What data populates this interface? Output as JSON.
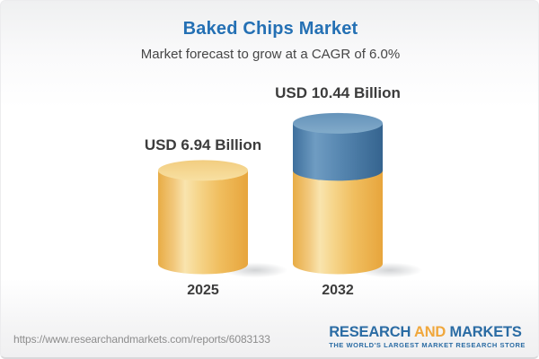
{
  "header": {
    "title": "Baked Chips Market",
    "subtitle": "Market forecast to grow at a CAGR of 6.0%"
  },
  "chart_data": {
    "type": "bar",
    "style": "3d-cylinder",
    "title": "Baked Chips Market",
    "subtitle": "Market forecast to grow at a CAGR of 6.0%",
    "unit": "USD Billion",
    "cagr_percent": 6.0,
    "categories": [
      "2025",
      "2032"
    ],
    "values": [
      6.94,
      10.44
    ],
    "value_labels": [
      "USD 6.94 Billion",
      "USD 10.44 Billion"
    ],
    "series_note": "2032 bar shows base value (gold) plus growth above 2025 value (blue)",
    "legend": "none",
    "axes": "none"
  },
  "colors": {
    "title_blue": "#2470b4",
    "text_dark": "#3c3c3c",
    "bar_base_gold": "#f0be5f",
    "bar_growth_blue": "#5585af",
    "logo_blue": "#2b6ca4",
    "logo_orange": "#f0a73c",
    "url_gray": "#8c8c8c"
  },
  "footer": {
    "url": "https://www.researchandmarkets.com/reports/6083133",
    "logo": {
      "word1": "RESEARCH",
      "word2": "AND",
      "word3": "MARKETS",
      "tagline": "THE WORLD'S LARGEST MARKET RESEARCH STORE"
    }
  }
}
